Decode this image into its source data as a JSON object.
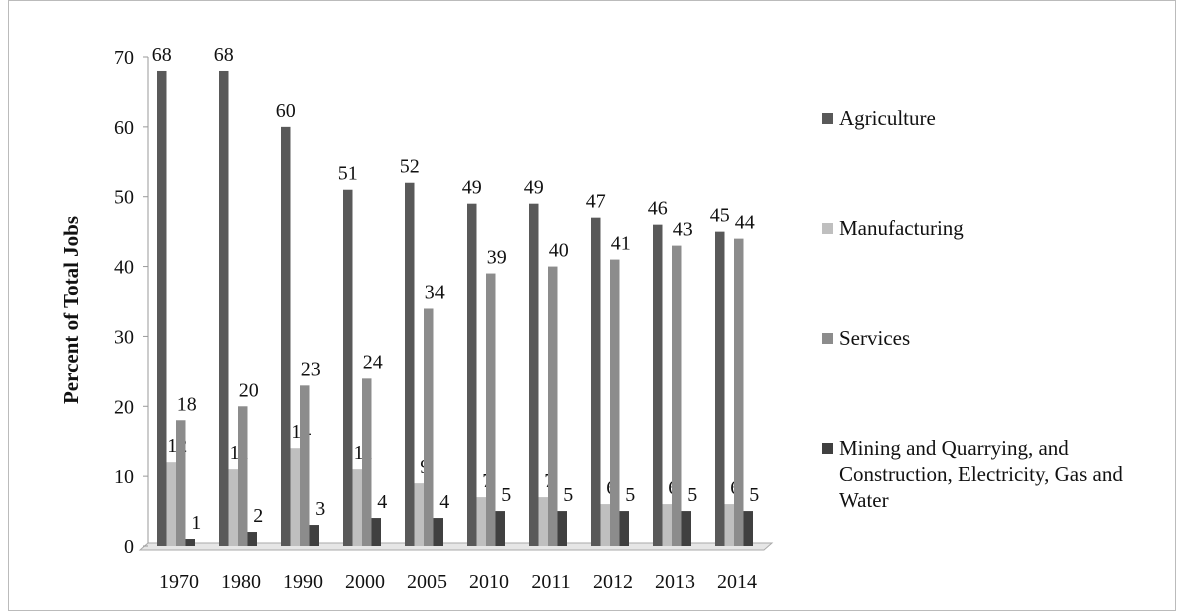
{
  "chart_data": {
    "type": "bar",
    "y_label": "Percent of Total Jobs",
    "categories": [
      "1970",
      "1980",
      "1990",
      "2000",
      "2005",
      "2010",
      "2011",
      "2012",
      "2013",
      "2014"
    ],
    "series": [
      {
        "name": "Agriculture",
        "color": "#595959",
        "values": [
          68,
          68,
          60,
          51,
          52,
          49,
          49,
          47,
          46,
          45
        ]
      },
      {
        "name": "Manufacturing",
        "color": "#bfbfbf",
        "values": [
          12,
          11,
          14,
          11,
          9,
          7,
          7,
          6,
          6,
          6
        ]
      },
      {
        "name": "Services",
        "color": "#8c8c8c",
        "values": [
          18,
          20,
          23,
          24,
          34,
          39,
          40,
          41,
          43,
          44
        ]
      },
      {
        "name": "Mining and Quarrying, and Construction, Electricity, Gas and Water",
        "color": "#404040",
        "values": [
          1,
          2,
          3,
          4,
          4,
          5,
          5,
          5,
          5,
          5
        ]
      }
    ],
    "ylim": [
      0,
      70
    ],
    "yticks": [
      0,
      10,
      20,
      30,
      40,
      50,
      60,
      70
    ],
    "legend": "right"
  }
}
